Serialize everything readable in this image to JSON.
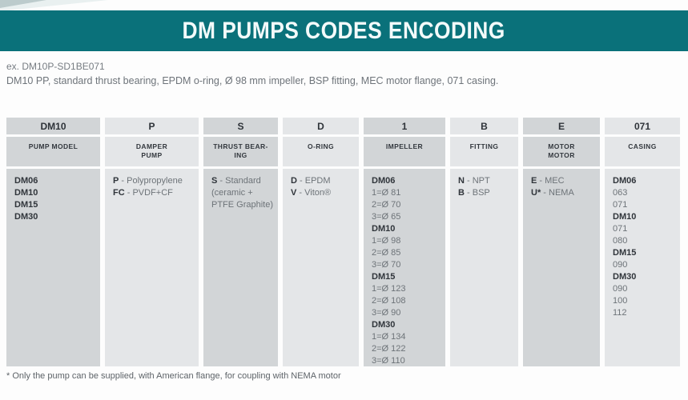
{
  "banner": {
    "title": "DM PUMPS CODES ENCODING"
  },
  "example": {
    "code_line": "ex. DM10P-SD1BE071",
    "description": "DM10 PP, standard thrust bearing, EPDM o-ring, Ø 98 mm impeller, BSP fitting, MEC motor flange, 071 casing."
  },
  "footnote": "* Only the pump can be supplied, with American flange, for coupling with NEMA motor",
  "colors": {
    "banner_teal": "#0a717a",
    "cell_dark": "#d2d5d7",
    "cell_light": "#e4e6e8",
    "text_dark": "#30353b",
    "text_grey": "#6d7378"
  },
  "table": {
    "columns": [
      {
        "id": "pump-model",
        "code": "DM10",
        "label_lines": [
          "PUMP MODEL"
        ],
        "body": [
          {
            "b": "DM06",
            "r": ""
          },
          {
            "b": "DM10",
            "r": ""
          },
          {
            "b": "DM15",
            "r": ""
          },
          {
            "b": "DM30",
            "r": ""
          }
        ]
      },
      {
        "id": "damper-pump",
        "code": "P",
        "label_lines": [
          "DAMPER",
          "PUMP"
        ],
        "body": [
          {
            "b": "P",
            "r": " - Polypropylene"
          },
          {
            "b": "FC",
            "r": " - PVDF+CF"
          }
        ]
      },
      {
        "id": "thrust-bearing",
        "code": "S",
        "label_lines": [
          "THRUST BEAR-",
          "ING"
        ],
        "body": [
          {
            "b": "S",
            "r": " - Standard"
          },
          {
            "b": "",
            "r": "(ceramic +"
          },
          {
            "b": "",
            "r": "PTFE Graphite)"
          }
        ]
      },
      {
        "id": "o-ring",
        "code": "D",
        "label_lines": [
          "O-RING"
        ],
        "body": [
          {
            "b": "D",
            "r": " - EPDM"
          },
          {
            "b": "V",
            "r": " - Viton®"
          }
        ]
      },
      {
        "id": "impeller",
        "code": "1",
        "label_lines": [
          "IMPELLER"
        ],
        "body": [
          {
            "b": "DM06",
            "r": ""
          },
          {
            "b": "",
            "r": "1=Ø 81"
          },
          {
            "b": "",
            "r": "2=Ø 70"
          },
          {
            "b": "",
            "r": "3=Ø 65"
          },
          {
            "b": "DM10",
            "r": ""
          },
          {
            "b": "",
            "r": "1=Ø 98"
          },
          {
            "b": "",
            "r": "2=Ø 85"
          },
          {
            "b": "",
            "r": "3=Ø 70"
          },
          {
            "b": "DM15",
            "r": ""
          },
          {
            "b": "",
            "r": "1=Ø 123"
          },
          {
            "b": "",
            "r": "2=Ø 108"
          },
          {
            "b": "",
            "r": "3=Ø 90"
          },
          {
            "b": "DM30",
            "r": ""
          },
          {
            "b": "",
            "r": "1=Ø 134"
          },
          {
            "b": "",
            "r": "2=Ø 122"
          },
          {
            "b": "",
            "r": "3=Ø 110"
          }
        ]
      },
      {
        "id": "fitting",
        "code": "B",
        "label_lines": [
          "FITTING"
        ],
        "body": [
          {
            "b": "N",
            "r": " - NPT"
          },
          {
            "b": "B",
            "r": " - BSP"
          }
        ]
      },
      {
        "id": "motor",
        "code": "E",
        "label_lines": [
          "MOTOR",
          "MOTOR"
        ],
        "body": [
          {
            "b": "E",
            "r": " - MEC"
          },
          {
            "b": "U*",
            "r": " - NEMA"
          }
        ]
      },
      {
        "id": "casing",
        "code": "071",
        "label_lines": [
          "CASING"
        ],
        "body": [
          {
            "b": "DM06",
            "r": ""
          },
          {
            "b": "",
            "r": "063"
          },
          {
            "b": "",
            "r": "071"
          },
          {
            "b": "DM10",
            "r": ""
          },
          {
            "b": "",
            "r": "071"
          },
          {
            "b": "",
            "r": "080"
          },
          {
            "b": "DM15",
            "r": ""
          },
          {
            "b": "",
            "r": "090"
          },
          {
            "b": "DM30",
            "r": ""
          },
          {
            "b": "",
            "r": "090"
          },
          {
            "b": "",
            "r": "100"
          },
          {
            "b": "",
            "r": "112"
          }
        ]
      }
    ]
  }
}
